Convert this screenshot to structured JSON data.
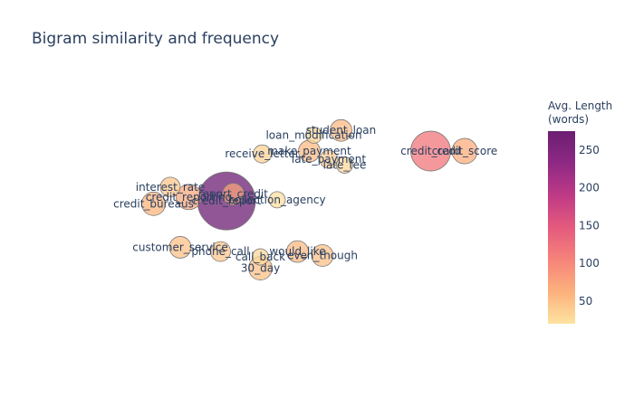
{
  "chart_data": {
    "type": "scatter",
    "title": "Bigram similarity and frequency",
    "xlabel": "",
    "ylabel": "",
    "grid": false,
    "show_axes": false,
    "x_range": [
      0,
      100
    ],
    "y_range": [
      0,
      100
    ],
    "colorbar": {
      "title_lines": [
        "Avg. Length",
        "(words)"
      ],
      "range": [
        20,
        275
      ],
      "ticks": [
        50,
        100,
        150,
        200,
        250
      ],
      "colorscale": [
        "#fde3a1",
        "#fcb17c",
        "#f6837a",
        "#e45a7e",
        "#bf3a86",
        "#8e2984",
        "#6b1e72"
      ]
    },
    "points": [
      {
        "label": "student_loan",
        "x": 59.3,
        "y": 83.0,
        "size": 12,
        "color_value": 55
      },
      {
        "label": "loan_modification",
        "x": 53.3,
        "y": 81.0,
        "size": 9,
        "color_value": 30
      },
      {
        "label": "make_payment",
        "x": 52.3,
        "y": 74.2,
        "size": 12,
        "color_value": 55
      },
      {
        "label": "receive_letter",
        "x": 41.9,
        "y": 73.0,
        "size": 10,
        "color_value": 35
      },
      {
        "label": "late_payment",
        "x": 56.6,
        "y": 70.7,
        "size": 10,
        "color_value": 40
      },
      {
        "label": "late_fee",
        "x": 60.1,
        "y": 68.3,
        "size": 9,
        "color_value": 30
      },
      {
        "label": "credit_card",
        "x": 79.1,
        "y": 74.2,
        "size": 22,
        "color_value": 120
      },
      {
        "label": "credit_score",
        "x": 86.6,
        "y": 74.2,
        "size": 14,
        "color_value": 65
      },
      {
        "label": "interest_rate",
        "x": 21.6,
        "y": 58.9,
        "size": 11,
        "color_value": 45
      },
      {
        "label": "credit_reporting",
        "x": 25.7,
        "y": 54.7,
        "size": 14,
        "color_value": 70
      },
      {
        "label": "credit_bureaus",
        "x": 17.9,
        "y": 51.8,
        "size": 13,
        "color_value": 60
      },
      {
        "label": "credit_report",
        "x": 34.0,
        "y": 53.0,
        "size": 32,
        "color_value": 275
      },
      {
        "label": "report_credit",
        "x": 35.5,
        "y": 55.9,
        "size": 12,
        "color_value": 75
      },
      {
        "label": "collection_agency",
        "x": 45.2,
        "y": 53.5,
        "size": 9,
        "color_value": 25
      },
      {
        "label": "customer_service",
        "x": 23.8,
        "y": 33.3,
        "size": 12,
        "color_value": 50
      },
      {
        "label": "phone_call",
        "x": 32.7,
        "y": 31.5,
        "size": 11,
        "color_value": 45
      },
      {
        "label": "call_back",
        "x": 41.5,
        "y": 29.2,
        "size": 9,
        "color_value": 30
      },
      {
        "label": "would_like",
        "x": 49.7,
        "y": 31.5,
        "size": 12,
        "color_value": 55
      },
      {
        "label": "even_though",
        "x": 55.2,
        "y": 29.8,
        "size": 12,
        "color_value": 50
      },
      {
        "label": "30_day",
        "x": 41.5,
        "y": 24.4,
        "size": 13,
        "color_value": 50
      }
    ]
  }
}
